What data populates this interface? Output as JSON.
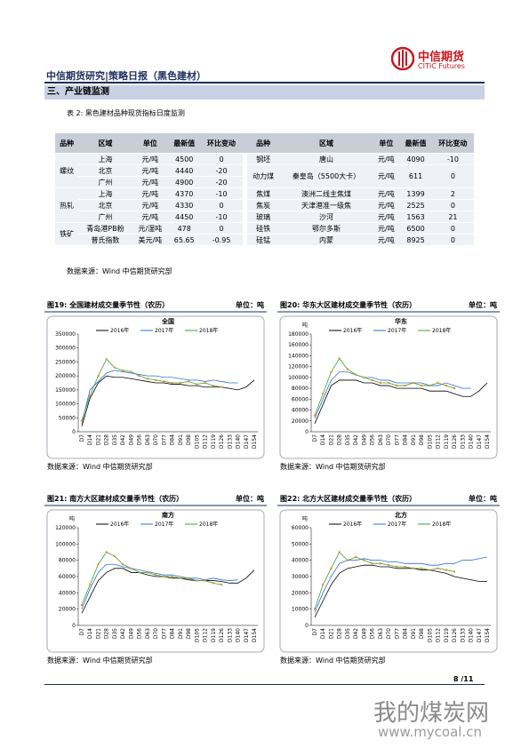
{
  "header": {
    "title": "中信期货研究|策略日报（黑色建材）",
    "logo_cn": "中信期货",
    "logo_en": "CITIC Futures"
  },
  "section": "三、产业链监测",
  "table": {
    "caption": "表 2: 黑色建材品种现货指标日度监测",
    "header": [
      "品种",
      "区域",
      "单位",
      "最新值",
      "环比变动"
    ],
    "left": [
      {
        "name": "螺纹",
        "rows": [
          [
            "上海",
            "元/吨",
            "4500",
            "0"
          ],
          [
            "北京",
            "元/吨",
            "4440",
            "-20"
          ],
          [
            "广州",
            "元/吨",
            "4900",
            "-20"
          ]
        ]
      },
      {
        "name": "热轧",
        "rows": [
          [
            "上海",
            "元/吨",
            "4370",
            "-10"
          ],
          [
            "北京",
            "元/吨",
            "4330",
            "0"
          ],
          [
            "广州",
            "元/吨",
            "4450",
            "-10"
          ]
        ]
      },
      {
        "name": "铁矿",
        "rows": [
          [
            "青岛港PB粉",
            "元/湿吨",
            "478",
            "0"
          ],
          [
            "普氏指数",
            "美元/吨",
            "65.65",
            "-0.95"
          ]
        ]
      }
    ],
    "right": [
      [
        "钢坯",
        "唐山",
        "元/吨",
        "4090",
        "-10"
      ],
      [
        "动力煤",
        "秦皇岛（5500大卡）",
        "元/吨",
        "611",
        "0"
      ],
      [
        "焦煤",
        "澳洲二线主焦煤",
        "元/吨",
        "1399",
        "2"
      ],
      [
        "焦炭",
        "天津港准一级焦",
        "元/吨",
        "2525",
        "0"
      ],
      [
        "玻璃",
        "沙河",
        "元/吨",
        "1563",
        "21"
      ],
      [
        "硅铁",
        "鄂尔多斯",
        "元/吨",
        "6500",
        "0"
      ],
      [
        "硅锰",
        "内蒙",
        "元/吨",
        "8925",
        "0"
      ]
    ],
    "source": "数据来源：Wind 中信期货研究部"
  },
  "chart_data": [
    {
      "type": "line",
      "title": "图19: 全国建材成交量季节性（农历）",
      "unit": "单位：吨",
      "subtitle": "全国",
      "source": "数据来源：Wind 中信期货研究部",
      "categories": [
        "D7",
        "D14",
        "D21",
        "D28",
        "D35",
        "D42",
        "D49",
        "D56",
        "D63",
        "D70",
        "D77",
        "D84",
        "D91",
        "D98",
        "D105",
        "D112",
        "D119",
        "D126",
        "D133",
        "D140",
        "D147",
        "D154"
      ],
      "ylim": [
        0,
        350000
      ],
      "yticks": [
        0,
        50000,
        100000,
        150000,
        200000,
        250000,
        300000,
        350000
      ],
      "series": [
        {
          "name": "2016年",
          "color": "#000000",
          "values": [
            20000,
            120000,
            175000,
            200000,
            195000,
            195000,
            190000,
            185000,
            180000,
            175000,
            175000,
            170000,
            170000,
            165000,
            165000,
            160000,
            160000,
            160000,
            155000,
            150000,
            160000,
            185000
          ]
        },
        {
          "name": "2017年",
          "color": "#2e6fd0",
          "values": [
            30000,
            150000,
            180000,
            210000,
            220000,
            215000,
            210000,
            205000,
            200000,
            200000,
            195000,
            195000,
            190000,
            185000,
            185000,
            180000,
            185000,
            180000,
            175000,
            175000,
            null,
            null
          ]
        },
        {
          "name": "2018年",
          "color": "#3aa23a",
          "marker_color": "#f08a1c",
          "values": [
            40000,
            130000,
            200000,
            260000,
            230000,
            220000,
            215000,
            200000,
            190000,
            185000,
            180000,
            175000,
            175000,
            180000,
            170000,
            175000,
            165000,
            160000,
            null,
            null,
            null,
            null
          ]
        }
      ]
    },
    {
      "type": "line",
      "title": "图20: 华东大区建材成交量季节性（农历）",
      "unit": "单位：吨",
      "subtitle": "华东",
      "y_unit": "吨",
      "source": "数据来源：Wind 中信期货研究部",
      "categories": [
        "D7",
        "D14",
        "D21",
        "D28",
        "D35",
        "D42",
        "D49",
        "D56",
        "D63",
        "D70",
        "D77",
        "D84",
        "D91",
        "D98",
        "D105",
        "D112",
        "D119",
        "D126",
        "D133",
        "D140",
        "D147",
        "D154"
      ],
      "ylim": [
        0,
        180000
      ],
      "yticks": [
        0,
        20000,
        40000,
        60000,
        80000,
        100000,
        120000,
        140000,
        160000,
        180000
      ],
      "series": [
        {
          "name": "2016年",
          "color": "#000000",
          "values": [
            15000,
            50000,
            85000,
            95000,
            95000,
            95000,
            90000,
            90000,
            85000,
            85000,
            80000,
            80000,
            80000,
            80000,
            75000,
            75000,
            75000,
            70000,
            65000,
            65000,
            75000,
            90000
          ]
        },
        {
          "name": "2017年",
          "color": "#2e6fd0",
          "values": [
            25000,
            60000,
            95000,
            110000,
            110000,
            105000,
            100000,
            100000,
            95000,
            95000,
            90000,
            90000,
            90000,
            90000,
            85000,
            85000,
            90000,
            85000,
            80000,
            80000,
            null,
            null
          ]
        },
        {
          "name": "2018年",
          "color": "#3aa23a",
          "marker_color": "#f08a1c",
          "values": [
            30000,
            70000,
            110000,
            135000,
            115000,
            105000,
            100000,
            95000,
            90000,
            90000,
            85000,
            85000,
            90000,
            85000,
            85000,
            90000,
            85000,
            80000,
            null,
            null,
            null,
            null
          ]
        }
      ]
    },
    {
      "type": "line",
      "title": "图21: 南方大区建材成交量季节性（农历）",
      "unit": "单位：吨",
      "subtitle": "南方",
      "y_unit": "吨",
      "source": "数据来源：Wind 中信期货研究部",
      "categories": [
        "D7",
        "D14",
        "D21",
        "D28",
        "D35",
        "D42",
        "D49",
        "D56",
        "D63",
        "D70",
        "D77",
        "D84",
        "D91",
        "D98",
        "D105",
        "D112",
        "D119",
        "D126",
        "D133",
        "D140",
        "D147",
        "D154"
      ],
      "ylim": [
        0,
        120000
      ],
      "yticks": [
        0,
        20000,
        40000,
        60000,
        80000,
        100000,
        120000
      ],
      "series": [
        {
          "name": "2016年",
          "color": "#000000",
          "values": [
            15000,
            35000,
            55000,
            65000,
            70000,
            70000,
            65000,
            65000,
            62000,
            60000,
            60000,
            58000,
            58000,
            56000,
            55000,
            55000,
            55000,
            54000,
            52000,
            52000,
            58000,
            68000
          ]
        },
        {
          "name": "2017年",
          "color": "#2e6fd0",
          "values": [
            20000,
            45000,
            65000,
            75000,
            75000,
            72000,
            70000,
            68000,
            66000,
            64000,
            62000,
            62000,
            60000,
            58000,
            58000,
            56000,
            58000,
            56000,
            55000,
            56000,
            null,
            null
          ]
        },
        {
          "name": "2018年",
          "color": "#3aa23a",
          "marker_color": "#f08a1c",
          "values": [
            25000,
            50000,
            75000,
            90000,
            85000,
            75000,
            70000,
            65000,
            65000,
            62000,
            60000,
            60000,
            58000,
            58000,
            55000,
            55000,
            52000,
            50000,
            null,
            null,
            null,
            null
          ]
        }
      ]
    },
    {
      "type": "line",
      "title": "图22: 北方大区建材成交量季节性（农历）",
      "unit": "单位：吨",
      "subtitle": "北方",
      "y_unit": "吨",
      "source": "数据来源：Wind 中信期货研究部",
      "categories": [
        "D7",
        "D14",
        "D21",
        "D28",
        "D35",
        "D42",
        "D49",
        "D56",
        "D63",
        "D70",
        "D77",
        "D84",
        "D91",
        "D98",
        "D105",
        "D112",
        "D119",
        "D126",
        "D133",
        "D140",
        "D147",
        "D154"
      ],
      "ylim": [
        0,
        60000
      ],
      "yticks": [
        0,
        10000,
        20000,
        30000,
        40000,
        50000,
        60000
      ],
      "series": [
        {
          "name": "2016年",
          "color": "#000000",
          "values": [
            5000,
            15000,
            25000,
            32000,
            35000,
            36000,
            37000,
            37000,
            36000,
            36000,
            35000,
            35000,
            35000,
            34000,
            34000,
            33000,
            32000,
            30000,
            29000,
            28000,
            27000,
            27000
          ]
        },
        {
          "name": "2017年",
          "color": "#2e6fd0",
          "values": [
            8000,
            20000,
            30000,
            38000,
            40000,
            40000,
            41000,
            40000,
            40000,
            39000,
            39000,
            38000,
            38000,
            38000,
            37000,
            37000,
            38000,
            38000,
            40000,
            40000,
            41000,
            42000
          ]
        },
        {
          "name": "2018年",
          "color": "#3aa23a",
          "marker_color": "#f08a1c",
          "values": [
            10000,
            25000,
            35000,
            45000,
            40000,
            42000,
            40000,
            38000,
            38000,
            37000,
            36000,
            36000,
            35000,
            35000,
            34000,
            35000,
            34000,
            33000,
            null,
            null,
            null,
            null
          ]
        }
      ]
    }
  ],
  "footer": {
    "page": "8 /11",
    "watermark_cn": "我的煤炭网",
    "watermark_url": "www.mycoal.cn"
  }
}
